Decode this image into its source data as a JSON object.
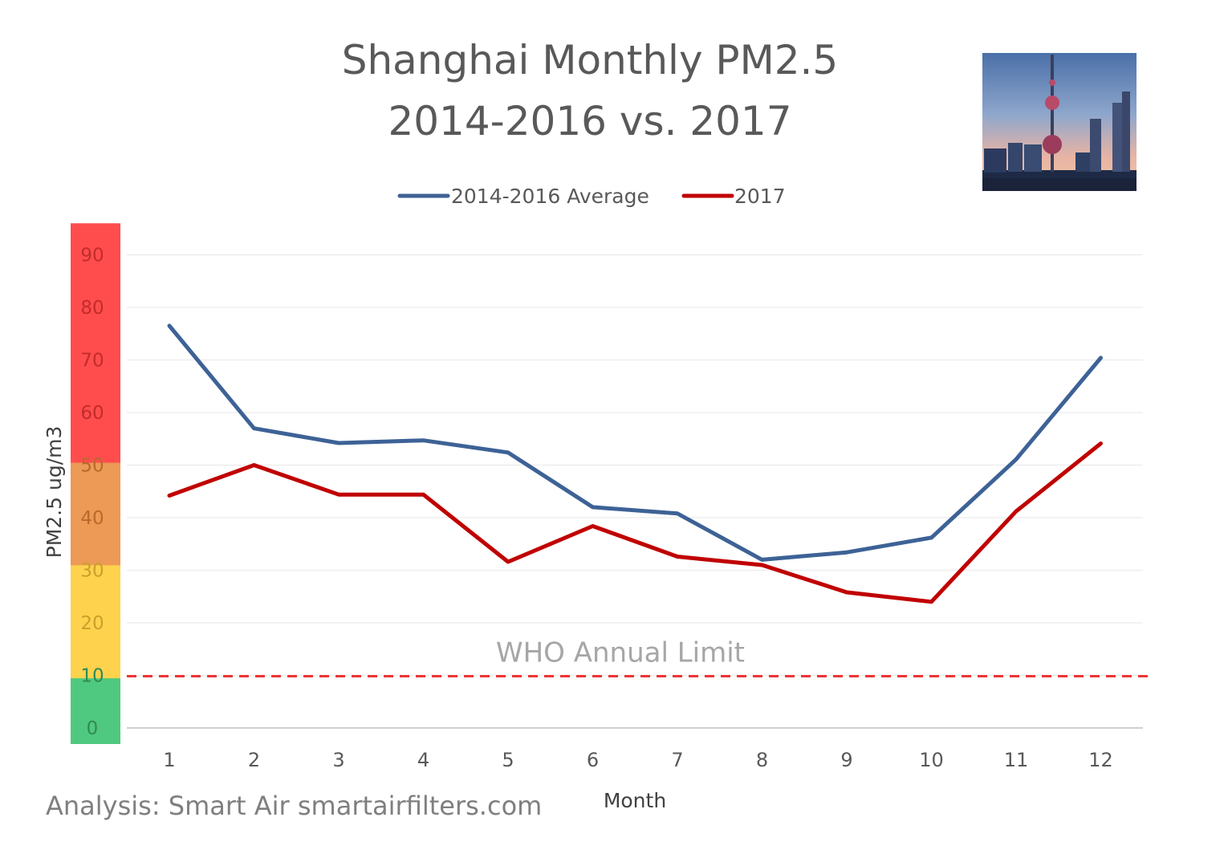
{
  "chart_data": {
    "type": "line",
    "title_lines": [
      "Shanghai Monthly PM2.5",
      "2014-2016 vs. 2017"
    ],
    "xlabel": "Month",
    "ylabel": "PM2.5 ug/m3",
    "x": [
      1,
      2,
      3,
      4,
      5,
      6,
      7,
      8,
      9,
      10,
      11,
      12
    ],
    "x_tick_labels": [
      "1",
      "2",
      "3",
      "4",
      "5",
      "6",
      "7",
      "8",
      "9",
      "10",
      "11",
      "12"
    ],
    "y_tick_labels": [
      "0",
      "10",
      "20",
      "30",
      "40",
      "50",
      "60",
      "70",
      "80",
      "90"
    ],
    "y_ticks": [
      0,
      10,
      20,
      30,
      40,
      50,
      60,
      70,
      80,
      90
    ],
    "ylim": [
      0,
      95
    ],
    "grid": true,
    "legend_position": "top",
    "series": [
      {
        "name": "2014-2016 Average",
        "color": "#3d6296",
        "values": [
          76.5,
          57.0,
          54.2,
          54.7,
          52.4,
          42.0,
          40.8,
          32.0,
          33.4,
          36.2,
          51.1,
          70.4
        ]
      },
      {
        "name": "2017",
        "color": "#c00000",
        "values": [
          44.2,
          50.0,
          44.4,
          44.4,
          31.6,
          38.4,
          32.6,
          31.0,
          25.8,
          24.0,
          41.2,
          54.1
        ]
      }
    ],
    "reference_line": {
      "value": 10,
      "label": "WHO Annual Limit",
      "color": "#ee3434"
    },
    "aqi_bands": [
      {
        "from": 0,
        "to": 12.5,
        "color": "#4fc97f",
        "tick_color": "#2f8a55"
      },
      {
        "from": 12.5,
        "to": 34,
        "color": "#ffd24d",
        "tick_color": "#c9a02a"
      },
      {
        "from": 34,
        "to": 53.5,
        "color": "#ec9a55",
        "tick_color": "#b86a2c"
      },
      {
        "from": 53.5,
        "to": 96,
        "color": "#ff4d4d",
        "tick_color": "#c42b2b"
      }
    ]
  },
  "footnote": "Analysis: Smart Air smartairfilters.com",
  "photo_icon": "shanghai-skyline-photo"
}
